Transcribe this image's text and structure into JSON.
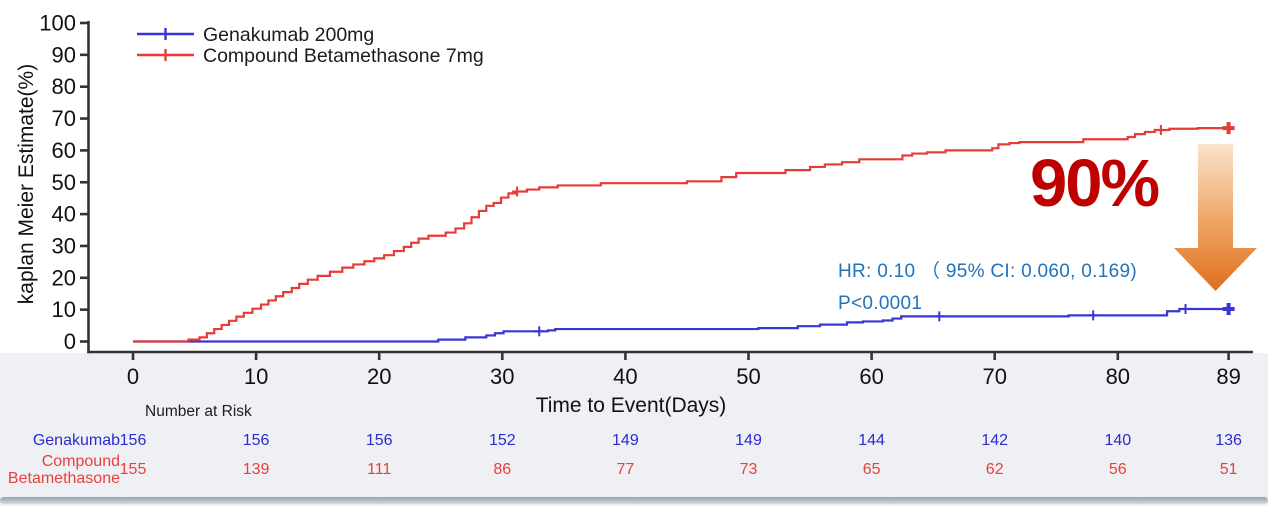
{
  "chart_data": {
    "type": "line",
    "subtype": "kaplan-meier-step",
    "title": "",
    "xlabel": "Time to Event(Days)",
    "ylabel": "kaplan Meier Estimate(%)",
    "xlim": [
      0,
      89
    ],
    "ylim": [
      0,
      100
    ],
    "x_ticks": [
      0,
      10,
      20,
      30,
      40,
      50,
      60,
      70,
      80,
      89
    ],
    "y_ticks": [
      0,
      10,
      20,
      30,
      40,
      50,
      60,
      70,
      80,
      90,
      100
    ],
    "grid": false,
    "legend_position": "upper-left",
    "series": [
      {
        "name": "Genakumab 200mg",
        "color": "#3a36d2",
        "steps": [
          [
            24.8,
            0.6
          ],
          [
            27.0,
            1.3
          ],
          [
            28.7,
            1.9
          ],
          [
            29.4,
            2.6
          ],
          [
            30.1,
            3.2
          ],
          [
            33.7,
            3.5
          ],
          [
            34.3,
            3.9
          ],
          [
            50.8,
            4.2
          ],
          [
            54.0,
            4.8
          ],
          [
            55.8,
            5.3
          ],
          [
            58.0,
            6.0
          ],
          [
            59.3,
            6.3
          ],
          [
            60.9,
            6.6
          ],
          [
            61.7,
            7.2
          ],
          [
            62.4,
            7.9
          ],
          [
            76.0,
            8.2
          ],
          [
            84.0,
            9.5
          ],
          [
            85.0,
            10.2
          ]
        ],
        "censor_marks": [
          [
            33.0,
            3.2
          ],
          [
            65.5,
            7.9
          ],
          [
            78.0,
            8.2
          ],
          [
            85.5,
            10.2
          ]
        ],
        "end_point": [
          89,
          10.2
        ]
      },
      {
        "name": "Compound Betamethasone 7mg",
        "color": "#e63c38",
        "steps": [
          [
            4.5,
            0.6
          ],
          [
            5.4,
            1.3
          ],
          [
            6.0,
            2.6
          ],
          [
            6.6,
            3.9
          ],
          [
            7.2,
            5.2
          ],
          [
            7.8,
            6.5
          ],
          [
            8.4,
            7.8
          ],
          [
            9.0,
            9.0
          ],
          [
            9.7,
            10.3
          ],
          [
            10.4,
            11.6
          ],
          [
            11.0,
            12.9
          ],
          [
            11.6,
            14.2
          ],
          [
            12.2,
            15.5
          ],
          [
            12.9,
            16.8
          ],
          [
            13.5,
            18.1
          ],
          [
            14.2,
            19.4
          ],
          [
            15.0,
            20.6
          ],
          [
            16.0,
            21.9
          ],
          [
            17.0,
            23.2
          ],
          [
            17.9,
            24.2
          ],
          [
            18.8,
            25.2
          ],
          [
            19.6,
            26.1
          ],
          [
            20.4,
            27.1
          ],
          [
            21.2,
            28.4
          ],
          [
            22.0,
            29.7
          ],
          [
            22.6,
            31.0
          ],
          [
            23.2,
            32.3
          ],
          [
            24.0,
            33.2
          ],
          [
            25.4,
            34.2
          ],
          [
            26.2,
            35.5
          ],
          [
            26.9,
            37.1
          ],
          [
            27.5,
            39.0
          ],
          [
            28.1,
            41.0
          ],
          [
            28.7,
            42.6
          ],
          [
            29.3,
            43.5
          ],
          [
            29.9,
            45.2
          ],
          [
            30.5,
            46.5
          ],
          [
            31.2,
            47.1
          ],
          [
            32.0,
            47.7
          ],
          [
            33.0,
            48.4
          ],
          [
            34.5,
            49.0
          ],
          [
            38.0,
            49.7
          ],
          [
            45.0,
            50.3
          ],
          [
            47.8,
            51.6
          ],
          [
            49.0,
            52.9
          ],
          [
            53.0,
            53.8
          ],
          [
            55.0,
            54.8
          ],
          [
            56.2,
            55.6
          ],
          [
            57.6,
            56.3
          ],
          [
            59.0,
            57.2
          ],
          [
            62.5,
            58.4
          ],
          [
            63.3,
            59.0
          ],
          [
            64.5,
            59.4
          ],
          [
            66.0,
            60.0
          ],
          [
            69.8,
            60.7
          ],
          [
            70.3,
            61.9
          ],
          [
            71.2,
            62.3
          ],
          [
            72.0,
            62.6
          ],
          [
            77.2,
            63.5
          ],
          [
            80.8,
            64.2
          ],
          [
            81.4,
            65.1
          ],
          [
            82.2,
            65.8
          ],
          [
            83.0,
            66.4
          ],
          [
            84.2,
            66.8
          ],
          [
            86.5,
            67.0
          ]
        ],
        "censor_marks": [
          [
            31.2,
            47.1
          ],
          [
            83.5,
            66.4
          ]
        ],
        "end_point": [
          89,
          67.0
        ]
      }
    ]
  },
  "stats": {
    "hr_text": "HR:  0.10  （ 95% CI:  0.060, 0.169)",
    "p_text": "P<0.0001",
    "color": "#2273b9"
  },
  "highlight": {
    "text": "90%",
    "color": "#bf0000",
    "arrow_color_top": "#fae3cd",
    "arrow_color_bottom": "#e06e1a"
  },
  "risk_table": {
    "header": "Number at Risk",
    "columns_days": [
      0,
      10,
      20,
      30,
      40,
      50,
      60,
      70,
      80,
      89
    ],
    "rows": [
      {
        "label": "Genakumab",
        "label_lines": [
          "Genakumab"
        ],
        "color": "#2b2bd0",
        "values": [
          "156",
          "156",
          "156",
          "152",
          "149",
          "149",
          "144",
          "142",
          "140",
          "136"
        ]
      },
      {
        "label": "Compound Betamethasone",
        "label_lines": [
          "Compound",
          "Betamethasone"
        ],
        "color": "#e8403c",
        "values": [
          "155",
          "139",
          "111",
          "86",
          "77",
          "73",
          "65",
          "62",
          "56",
          "51"
        ]
      }
    ]
  }
}
